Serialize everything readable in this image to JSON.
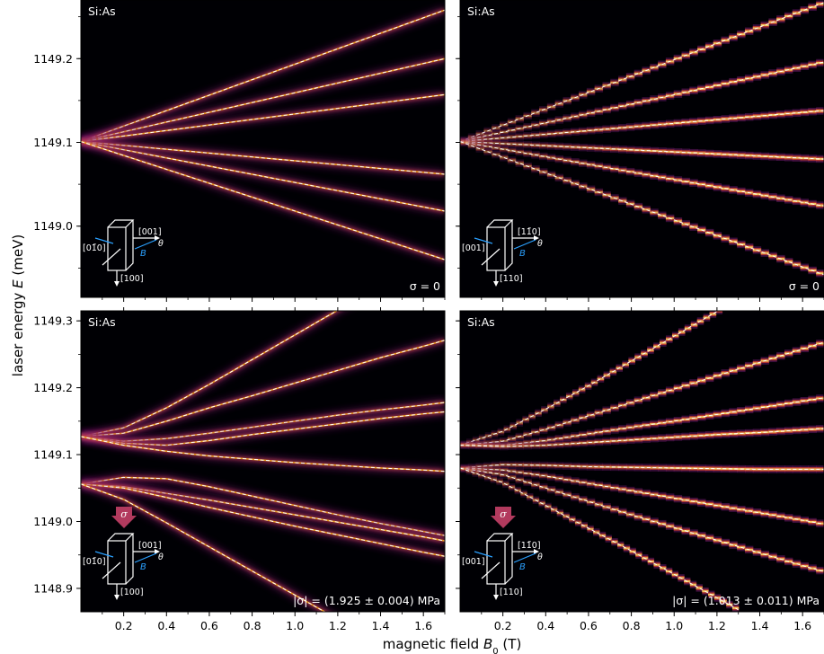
{
  "chart_data": {
    "type": "heatmap",
    "x_axis_label": "magnetic field",
    "x_axis_symbol": "B",
    "x_axis_sub": "0",
    "x_axis_unit": " (T)",
    "y_axis_label": "laser energy ",
    "y_axis_symbol": "E",
    "y_axis_unit": " (meV)",
    "x_ticks": [
      0.2,
      0.4,
      0.6,
      0.8,
      1.0,
      1.2,
      1.4,
      1.6
    ],
    "x_tick_labels": [
      "0.2",
      "0.4",
      "0.6",
      "0.8",
      "1.0",
      "1.2",
      "1.4",
      "1.6"
    ],
    "xlim": [
      0.0,
      1.7
    ],
    "colormap": "inferno",
    "panels": [
      {
        "label": "Si:As",
        "annotation": "σ = 0",
        "sigma_text": "",
        "inset": {
          "top": "",
          "left": "[0$1̄$0]",
          "right": "[001]",
          "bottom": "[100]",
          "field": "B",
          "angle": "θ",
          "arrow": false
        },
        "ylim": [
          1148.915,
          1149.27
        ],
        "y_ticks": [
          1149.0,
          1149.1,
          1149.2
        ],
        "y_tick_labels": [
          "1149.0",
          "1149.1",
          "1149.2"
        ],
        "line_style": "sharp",
        "series": [
          {
            "x": [
              0.0,
              1.7
            ],
            "y": [
              1149.101,
              1149.258
            ]
          },
          {
            "x": [
              0.0,
              1.7
            ],
            "y": [
              1149.101,
              1149.2
            ]
          },
          {
            "x": [
              0.0,
              1.7
            ],
            "y": [
              1149.101,
              1149.157
            ]
          },
          {
            "x": [
              0.0,
              1.7
            ],
            "y": [
              1149.101,
              1149.062
            ]
          },
          {
            "x": [
              0.0,
              1.7
            ],
            "y": [
              1149.101,
              1149.018
            ]
          },
          {
            "x": [
              0.0,
              1.7
            ],
            "y": [
              1149.101,
              1148.96
            ]
          }
        ]
      },
      {
        "label": "Si:As",
        "annotation": "σ = 0",
        "sigma_text": "",
        "inset": {
          "top": "",
          "left": "[001]",
          "right": "[11̄0]",
          "bottom": "[110]",
          "field": "B",
          "angle": "θ",
          "arrow": false
        },
        "ylim": [
          1148.915,
          1149.27
        ],
        "y_ticks": [
          1149.0,
          1149.1,
          1149.2
        ],
        "y_tick_labels": [
          "",
          "",
          ""
        ],
        "line_style": "stepped",
        "series": [
          {
            "x": [
              0.0,
              1.7
            ],
            "y": [
              1149.101,
              1149.267
            ]
          },
          {
            "x": [
              0.0,
              1.7
            ],
            "y": [
              1149.101,
              1149.196
            ]
          },
          {
            "x": [
              0.0,
              1.7
            ],
            "y": [
              1149.101,
              1149.138
            ]
          },
          {
            "x": [
              0.0,
              1.7
            ],
            "y": [
              1149.101,
              1149.08
            ]
          },
          {
            "x": [
              0.0,
              1.7
            ],
            "y": [
              1149.101,
              1149.024
            ]
          },
          {
            "x": [
              0.0,
              1.7
            ],
            "y": [
              1149.101,
              1148.942
            ]
          }
        ]
      },
      {
        "label": "Si:As",
        "annotation": "|σ| = (1.925 ± 0.004) MPa",
        "sigma_text": "σ",
        "inset": {
          "top": "σ",
          "left": "[0$1̄$0]",
          "right": "[001]",
          "bottom": "[100]",
          "field": "B",
          "angle": "θ",
          "arrow": true
        },
        "ylim": [
          1148.865,
          1149.315
        ],
        "y_ticks": [
          1148.9,
          1149.0,
          1149.1,
          1149.2,
          1149.3
        ],
        "y_tick_labels": [
          "1148.9",
          "1149.0",
          "1149.1",
          "1149.2",
          "1149.3"
        ],
        "line_style": "sharp",
        "series": [
          {
            "x": [
              0.0,
              0.2,
              0.4,
              0.6,
              0.8,
              1.0,
              1.2,
              1.3
            ],
            "y": [
              1149.127,
              1149.14,
              1149.17,
              1149.205,
              1149.242,
              1149.279,
              1149.316,
              1149.334
            ]
          },
          {
            "x": [
              0.0,
              0.2,
              0.4,
              0.6,
              0.8,
              1.0,
              1.2,
              1.4,
              1.6,
              1.7
            ],
            "y": [
              1149.127,
              1149.132,
              1149.15,
              1149.17,
              1149.188,
              1149.207,
              1149.226,
              1149.245,
              1149.262,
              1149.271
            ]
          },
          {
            "x": [
              0.0,
              0.2,
              0.4,
              0.6,
              0.8,
              1.0,
              1.2,
              1.4,
              1.6,
              1.7
            ],
            "y": [
              1149.127,
              1149.12,
              1149.124,
              1149.132,
              1149.141,
              1149.15,
              1149.159,
              1149.167,
              1149.174,
              1149.178
            ]
          },
          {
            "x": [
              0.0,
              0.2,
              0.4,
              0.6,
              0.8,
              1.0,
              1.2,
              1.4,
              1.6,
              1.7
            ],
            "y": [
              1149.127,
              1149.117,
              1149.114,
              1149.121,
              1149.13,
              1149.138,
              1149.146,
              1149.154,
              1149.161,
              1149.164
            ]
          },
          {
            "x": [
              0.0,
              0.2,
              0.4,
              0.6,
              0.8,
              1.0,
              1.2,
              1.4,
              1.6,
              1.7
            ],
            "y": [
              1149.127,
              1149.114,
              1149.105,
              1149.098,
              1149.093,
              1149.088,
              1149.084,
              1149.08,
              1149.077,
              1149.075
            ]
          },
          {
            "x": [
              0.0,
              0.2,
              0.4,
              0.6,
              0.8,
              1.0,
              1.2,
              1.4,
              1.6,
              1.7
            ],
            "y": [
              1149.056,
              1149.066,
              1149.064,
              1149.052,
              1149.038,
              1149.024,
              1149.01,
              1148.997,
              1148.985,
              1148.979
            ]
          },
          {
            "x": [
              0.0,
              0.2,
              0.4,
              0.6,
              0.8,
              1.0,
              1.2,
              1.4,
              1.6,
              1.7
            ],
            "y": [
              1149.056,
              1149.052,
              1149.042,
              1149.032,
              1149.021,
              1149.01,
              1148.999,
              1148.988,
              1148.977,
              1148.971
            ]
          },
          {
            "x": [
              0.0,
              0.2,
              0.4,
              0.6,
              0.8,
              1.0,
              1.2,
              1.4,
              1.6,
              1.7
            ],
            "y": [
              1149.056,
              1149.05,
              1149.036,
              1149.021,
              1149.007,
              1148.993,
              1148.98,
              1148.967,
              1148.954,
              1148.948
            ]
          },
          {
            "x": [
              0.0,
              0.2,
              0.4,
              0.6,
              0.8,
              1.0,
              1.2,
              1.3
            ],
            "y": [
              1149.056,
              1149.033,
              1148.998,
              1148.962,
              1148.926,
              1148.89,
              1148.854,
              1148.836
            ]
          }
        ]
      },
      {
        "label": "Si:As",
        "annotation": "|σ| = (1.013 ± 0.011) MPa",
        "sigma_text": "σ",
        "inset": {
          "top": "σ",
          "left": "[001]",
          "right": "[11̄0]",
          "bottom": "[110]",
          "field": "B",
          "angle": "θ",
          "arrow": true
        },
        "ylim": [
          1148.865,
          1149.315
        ],
        "y_ticks": [
          1148.9,
          1149.0,
          1149.1,
          1149.2,
          1149.3
        ],
        "y_tick_labels": [
          "",
          "",
          "",
          "",
          ""
        ],
        "line_style": "stepped",
        "series": [
          {
            "x": [
              0.0,
              0.2,
              0.4,
              0.6,
              0.8,
              1.0,
              1.2,
              1.34
            ],
            "y": [
              1149.114,
              1149.135,
              1149.168,
              1149.203,
              1149.24,
              1149.277,
              1149.314,
              1149.34
            ]
          },
          {
            "x": [
              0.0,
              0.2,
              0.4,
              0.6,
              0.8,
              1.0,
              1.2,
              1.4,
              1.6,
              1.7
            ],
            "y": [
              1149.114,
              1149.12,
              1149.138,
              1149.158,
              1149.178,
              1149.198,
              1149.218,
              1149.238,
              1149.258,
              1149.268
            ]
          },
          {
            "x": [
              0.0,
              0.2,
              0.4,
              0.6,
              0.8,
              1.0,
              1.2,
              1.4,
              1.6,
              1.7
            ],
            "y": [
              1149.114,
              1149.114,
              1149.121,
              1149.131,
              1149.141,
              1149.15,
              1149.16,
              1149.17,
              1149.18,
              1149.185
            ]
          },
          {
            "x": [
              0.0,
              0.2,
              0.4,
              0.6,
              0.8,
              1.0,
              1.2,
              1.4,
              1.6,
              1.7
            ],
            "y": [
              1149.114,
              1149.112,
              1149.114,
              1149.118,
              1149.122,
              1149.126,
              1149.13,
              1149.133,
              1149.137,
              1149.139
            ]
          },
          {
            "x": [
              0.0,
              0.2,
              0.4,
              0.6,
              0.8,
              1.0,
              1.2,
              1.4,
              1.6,
              1.7
            ],
            "y": [
              1149.08,
              1149.085,
              1149.084,
              1149.082,
              1149.081,
              1149.08,
              1149.079,
              1149.078,
              1149.078,
              1149.078
            ]
          },
          {
            "x": [
              0.0,
              0.2,
              0.4,
              0.6,
              0.8,
              1.0,
              1.2,
              1.4,
              1.6,
              1.7
            ],
            "y": [
              1149.08,
              1149.077,
              1149.068,
              1149.057,
              1149.046,
              1149.035,
              1149.024,
              1149.013,
              1149.002,
              1148.996
            ]
          },
          {
            "x": [
              0.0,
              0.2,
              0.4,
              0.6,
              0.8,
              1.0,
              1.2,
              1.4,
              1.6,
              1.7
            ],
            "y": [
              1149.08,
              1149.07,
              1149.05,
              1149.03,
              1149.01,
              1148.991,
              1148.972,
              1148.953,
              1148.934,
              1148.925
            ]
          },
          {
            "x": [
              0.0,
              0.2,
              0.4,
              0.6,
              0.8,
              1.0,
              1.2,
              1.3
            ],
            "y": [
              1149.08,
              1149.058,
              1149.024,
              1148.99,
              1148.956,
              1148.921,
              1148.886,
              1148.868
            ]
          }
        ]
      }
    ]
  }
}
